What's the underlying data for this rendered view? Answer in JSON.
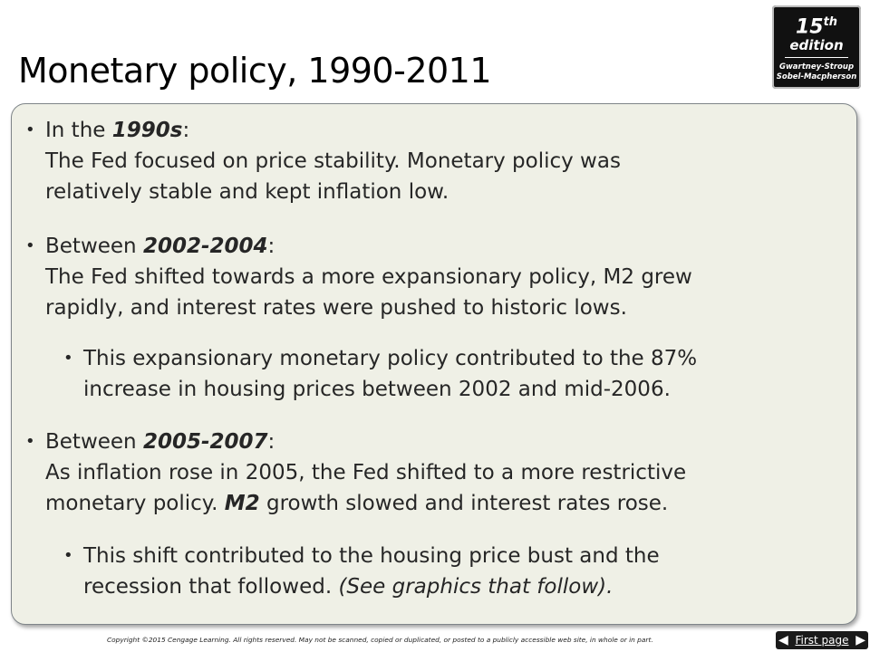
{
  "title": "Monetary policy, 1990-2011",
  "badge": {
    "number": "15",
    "suffix": "th",
    "word": "edition",
    "author1": "Gwartney-Stroup",
    "author2": "Sobel-Macpherson"
  },
  "bullets": {
    "b1": {
      "lead": "In the ",
      "em": "1990s",
      "colon": ":",
      "line2": "The Fed focused on price stability.  Monetary policy was",
      "line3": "relatively stable and kept inflation low."
    },
    "b2": {
      "lead": "Between ",
      "em": "2002-2004",
      "colon": ":",
      "line2": "The Fed shifted towards a more expansionary policy, M2 grew",
      "line3": "rapidly, and interest rates were pushed to historic lows."
    },
    "b2sub": {
      "line1": "This expansionary monetary policy contributed to the 87%",
      "line2": "increase in housing prices between 2002 and mid-2006."
    },
    "b3": {
      "lead": "Between ",
      "em": "2005-2007",
      "colon": ":",
      "line2": "As inflation rose in 2005, the Fed shifted to a more restrictive",
      "line3_pre": "monetary policy. ",
      "line3_em": "M2",
      "line3_post": " growth slowed and interest rates rose."
    },
    "b3sub": {
      "line1": "This shift contributed to the housing price bust and the",
      "line2_pre": "recession that followed.  ",
      "line2_it": "(See graphics that follow)."
    }
  },
  "footer": {
    "copyright": "Copyright ©2015 Cengage Learning. All rights reserved. May not be scanned, copied or duplicated, or posted to a publicly accessible web site, in whole or in part.",
    "nav_label": "First page"
  }
}
